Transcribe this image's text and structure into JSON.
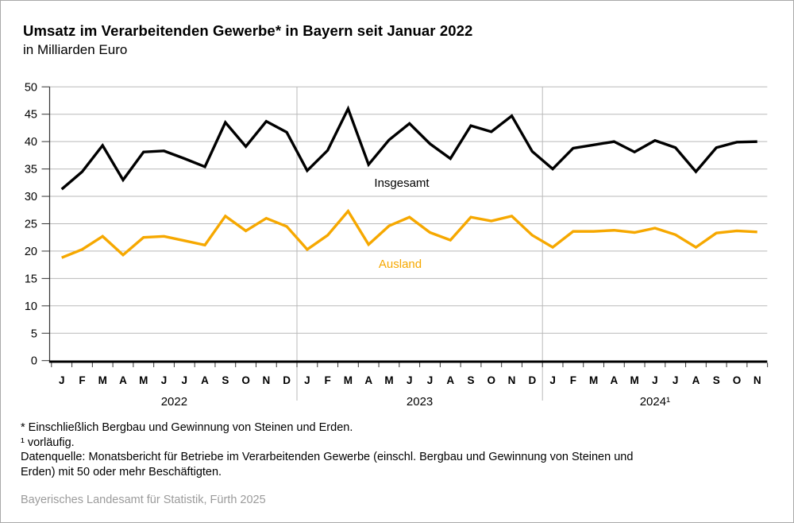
{
  "header": {
    "title": "Umsatz im Verarbeitenden Gewerbe* in Bayern seit Januar 2022",
    "subtitle": "in Milliarden Euro"
  },
  "chart_data": {
    "type": "line",
    "unit": "Milliarden Euro",
    "ylim": [
      0,
      50
    ],
    "ytick_step": 5,
    "grid": "horizontal",
    "legend_position": "inline-labels",
    "years": [
      {
        "label": "2022",
        "months": [
          "J",
          "F",
          "M",
          "A",
          "M",
          "J",
          "J",
          "A",
          "S",
          "O",
          "N",
          "D"
        ]
      },
      {
        "label": "2023",
        "months": [
          "J",
          "F",
          "M",
          "A",
          "M",
          "J",
          "J",
          "A",
          "S",
          "O",
          "N",
          "D"
        ]
      },
      {
        "label": "2024¹",
        "months": [
          "J",
          "F",
          "M",
          "A",
          "M",
          "J",
          "J",
          "A",
          "S",
          "O",
          "N"
        ]
      }
    ],
    "series": [
      {
        "name": "Insgesamt",
        "color": "#000000",
        "values": [
          31.3,
          34.5,
          39.3,
          33.0,
          38.1,
          38.3,
          36.9,
          35.4,
          43.5,
          39.1,
          43.7,
          41.7,
          34.7,
          38.4,
          46.0,
          35.8,
          40.3,
          43.3,
          39.6,
          36.9,
          42.9,
          41.8,
          44.7,
          38.2,
          35.0,
          38.8,
          39.4,
          40.0,
          38.1,
          40.2,
          38.9,
          34.5,
          38.9,
          39.9,
          40.0
        ]
      },
      {
        "name": "Ausland",
        "color": "#F6A800",
        "values": [
          18.8,
          20.3,
          22.7,
          19.3,
          22.5,
          22.7,
          21.9,
          21.1,
          26.4,
          23.7,
          26.0,
          24.5,
          20.3,
          22.9,
          27.3,
          21.2,
          24.6,
          26.2,
          23.4,
          22.0,
          26.2,
          25.5,
          26.4,
          22.9,
          20.7,
          23.6,
          23.6,
          23.8,
          23.4,
          24.2,
          23.0,
          20.7,
          23.3,
          23.7,
          23.5
        ]
      }
    ]
  },
  "footnotes": {
    "line1": "* Einschließlich Bergbau und Gewinnung von Steinen und Erden.",
    "line2": "¹ vorläufig.",
    "datenquelle_line1": "Datenquelle: Monatsbericht für Betriebe im Verarbeitenden Gewerbe (einschl. Bergbau und Gewinnung von Steinen und",
    "datenquelle_line2": "Erden) mit 50 oder mehr Beschäftigten."
  },
  "source": "Bayerisches Landesamt für Statistik, Fürth 2025",
  "colors": {
    "insgesamt": "#000000",
    "ausland": "#F6A800",
    "grid": "#b9b9b9",
    "axis": "#333333",
    "zero_line": "#000000",
    "source_text": "#9b9b9b",
    "frame": "#a9a9a9"
  }
}
